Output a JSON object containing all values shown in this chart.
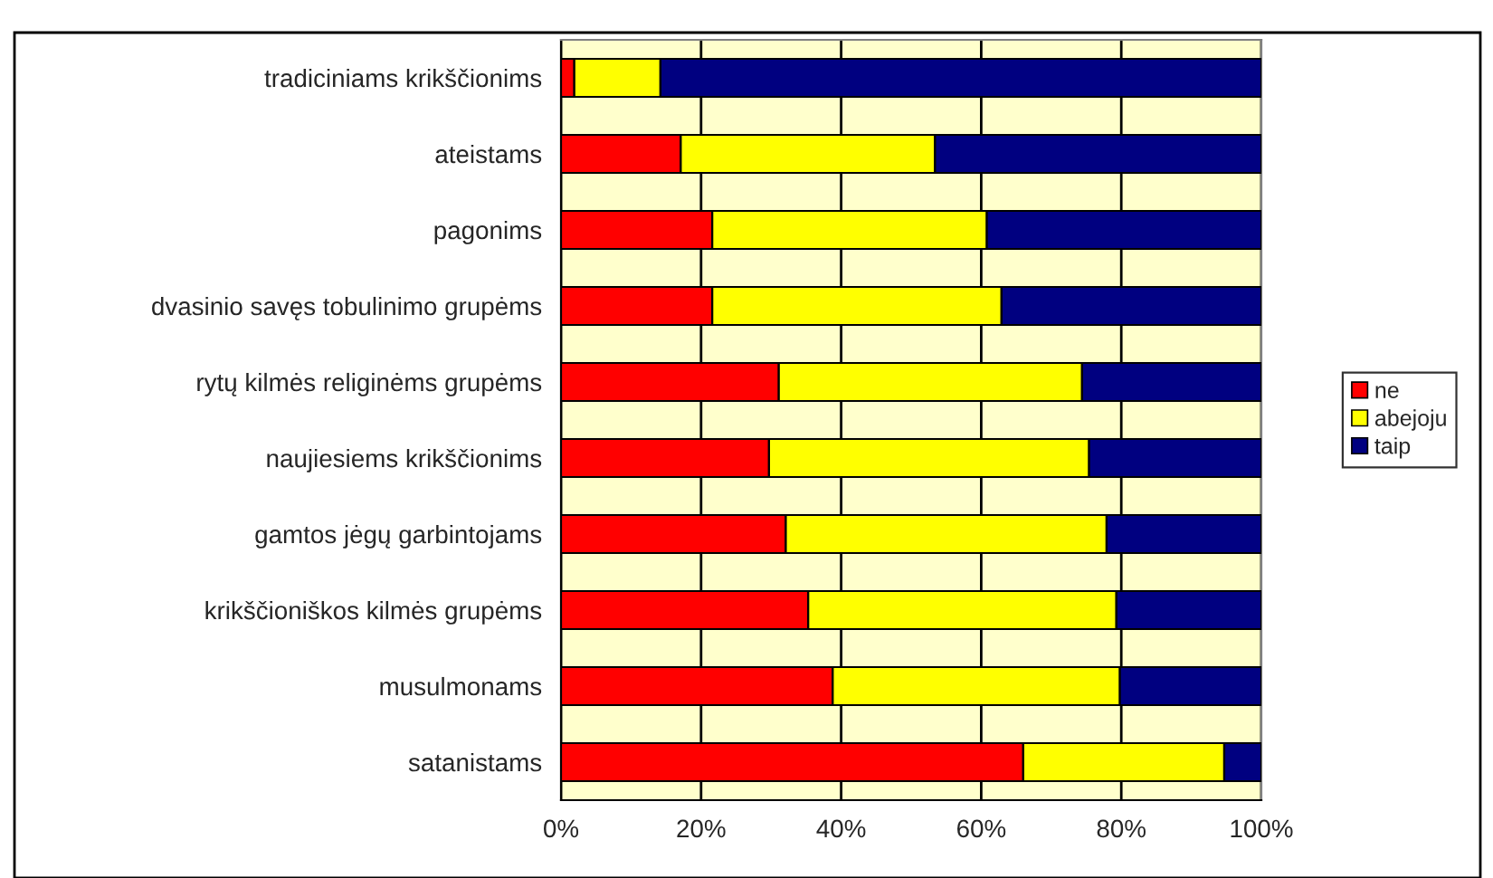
{
  "chart_data": {
    "type": "bar",
    "orientation": "horizontal",
    "stacked": true,
    "categories": [
      "tradiciniams krikščionims",
      "ateistams",
      "pagonims",
      "dvasinio savęs tobulinimo grupėms",
      "rytų kilmės religinėms grupėms",
      "naujiesiems krikščionims",
      "gamtos jėgų garbintojams",
      "krikščioniškos kilmės grupėms",
      "musulmonams",
      "satanistams"
    ],
    "series": [
      {
        "name": "ne",
        "color": "#ff0000",
        "values": [
          1.9,
          17.1,
          21.6,
          21.6,
          31.1,
          29.7,
          32.1,
          35.3,
          38.8,
          66.0
        ]
      },
      {
        "name": "abejoju",
        "color": "#ffff00",
        "values": [
          12.3,
          36.3,
          39.2,
          41.3,
          43.3,
          45.7,
          45.8,
          44.0,
          41.0,
          28.7
        ]
      },
      {
        "name": "taip",
        "color": "#000080",
        "values": [
          85.8,
          46.6,
          39.2,
          37.1,
          25.6,
          24.6,
          22.1,
          20.7,
          20.2,
          5.3
        ]
      }
    ],
    "xlim": [
      0,
      100
    ],
    "xticks": [
      {
        "value": 0,
        "label": "0%"
      },
      {
        "value": 20,
        "label": "20%"
      },
      {
        "value": 40,
        "label": "40%"
      },
      {
        "value": 60,
        "label": "60%"
      },
      {
        "value": 80,
        "label": "80%"
      },
      {
        "value": 100,
        "label": "100%"
      }
    ],
    "grid": "x",
    "legend": "right"
  }
}
